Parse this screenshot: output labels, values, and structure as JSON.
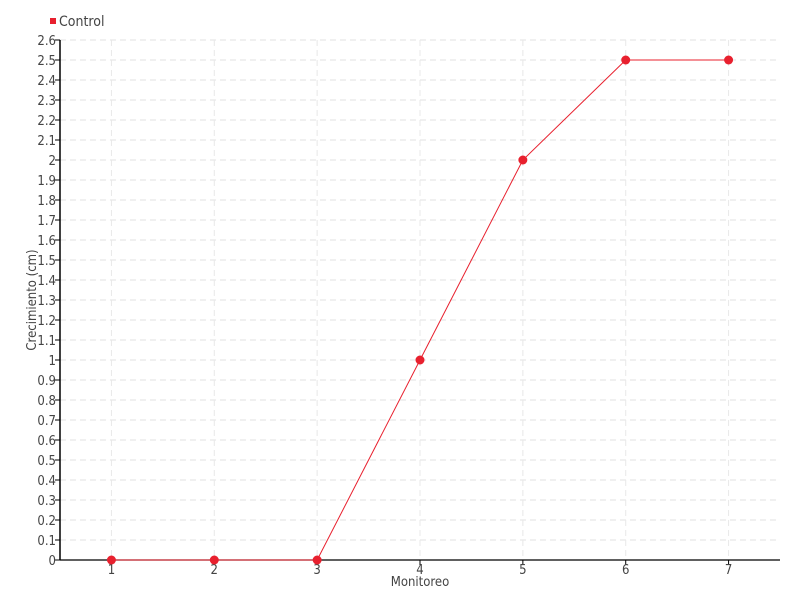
{
  "chart_data": {
    "type": "line",
    "title": "",
    "xlabel": "Monitoreo",
    "ylabel": "Crecimiento (cm)",
    "x": [
      1,
      2,
      3,
      4,
      5,
      6,
      7
    ],
    "series": [
      {
        "name": "Control",
        "color": "#e8202e",
        "values": [
          0,
          0,
          0,
          1,
          2,
          2.5,
          2.5
        ]
      }
    ],
    "xlim": [
      0.5,
      7.5
    ],
    "ylim": [
      0,
      2.6
    ],
    "ytick_step": 0.1,
    "grid": true,
    "legend_position": "top-left"
  }
}
